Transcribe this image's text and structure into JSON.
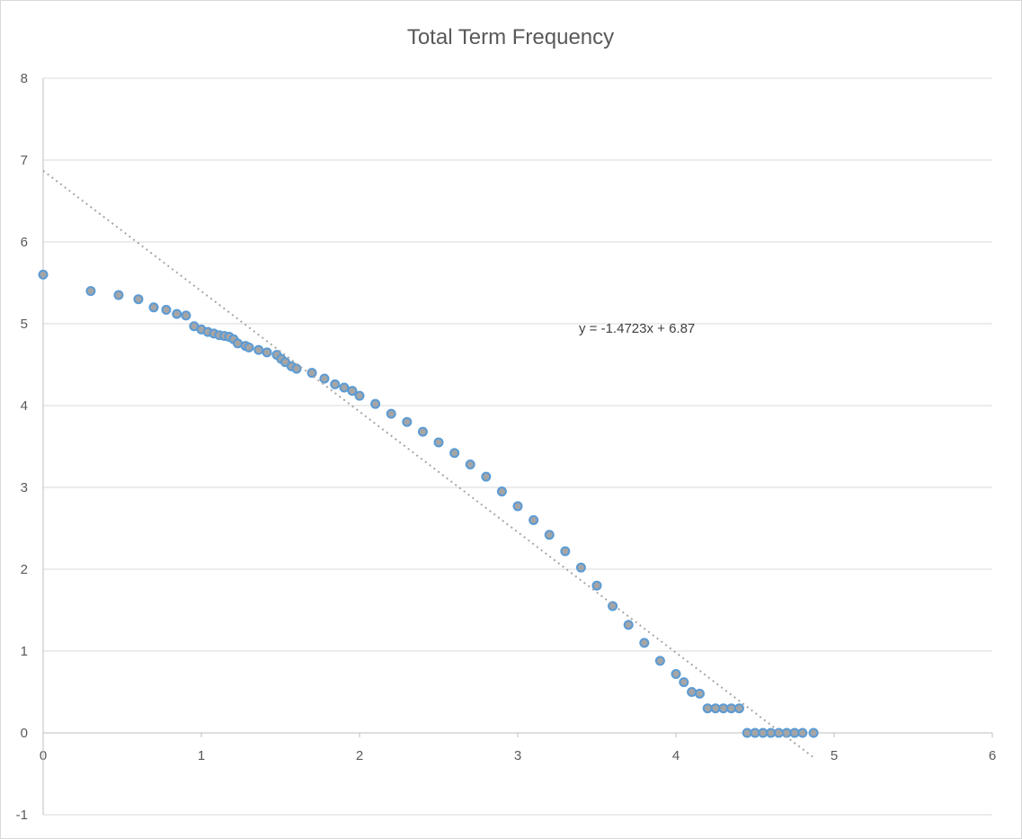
{
  "chart_data": {
    "type": "scatter",
    "title": "Total Term Frequency",
    "xlabel": "",
    "ylabel": "",
    "xlim": [
      0,
      6
    ],
    "ylim": [
      -1,
      8
    ],
    "x_ticks": [
      "0",
      "1",
      "2",
      "3",
      "4",
      "5",
      "6"
    ],
    "y_ticks": [
      "8",
      "7",
      "6",
      "5",
      "4",
      "3",
      "2",
      "1",
      "0",
      "-1"
    ],
    "grid": true,
    "legend": "none",
    "marker_fill": "#a5a5a5",
    "marker_edge": "#5b9bd5",
    "trendline": {
      "type": "linear",
      "slope": -1.4723,
      "intercept": 6.87,
      "x_range": [
        0,
        4.88
      ],
      "label": "y = -1.4723x + 6.87",
      "color": "#a6a6a6"
    },
    "series": [
      {
        "name": "",
        "x": [
          0,
          0.301,
          0.477,
          0.602,
          0.699,
          0.778,
          0.845,
          0.903,
          0.954,
          1.0,
          1.041,
          1.079,
          1.114,
          1.146,
          1.176,
          1.204,
          1.23,
          1.279,
          1.301,
          1.362,
          1.415,
          1.477,
          1.505,
          1.531,
          1.57,
          1.602,
          1.699,
          1.778,
          1.845,
          1.903,
          1.954,
          2.0,
          2.1,
          2.2,
          2.3,
          2.4,
          2.5,
          2.6,
          2.7,
          2.8,
          2.9,
          3.0,
          3.1,
          3.2,
          3.3,
          3.4,
          3.5,
          3.6,
          3.7,
          3.8,
          3.9,
          4.0,
          4.05,
          4.1,
          4.15,
          4.2,
          4.25,
          4.3,
          4.35,
          4.4,
          4.45,
          4.5,
          4.55,
          4.6,
          4.65,
          4.7,
          4.75,
          4.8,
          4.87
        ],
        "y": [
          5.6,
          5.4,
          5.35,
          5.3,
          5.2,
          5.17,
          5.12,
          5.1,
          4.97,
          4.93,
          4.9,
          4.88,
          4.86,
          4.85,
          4.84,
          4.81,
          4.76,
          4.73,
          4.71,
          4.68,
          4.65,
          4.62,
          4.57,
          4.53,
          4.48,
          4.45,
          4.4,
          4.33,
          4.26,
          4.22,
          4.18,
          4.12,
          4.02,
          3.9,
          3.8,
          3.68,
          3.55,
          3.42,
          3.28,
          3.13,
          2.95,
          2.77,
          2.6,
          2.42,
          2.22,
          2.02,
          1.8,
          1.55,
          1.32,
          1.1,
          0.88,
          0.72,
          0.62,
          0.5,
          0.48,
          0.3,
          0.3,
          0.3,
          0.3,
          0.3,
          0.0,
          0.0,
          0.0,
          0.0,
          0.0,
          0.0,
          0.0,
          0.0,
          0.0
        ]
      }
    ]
  }
}
